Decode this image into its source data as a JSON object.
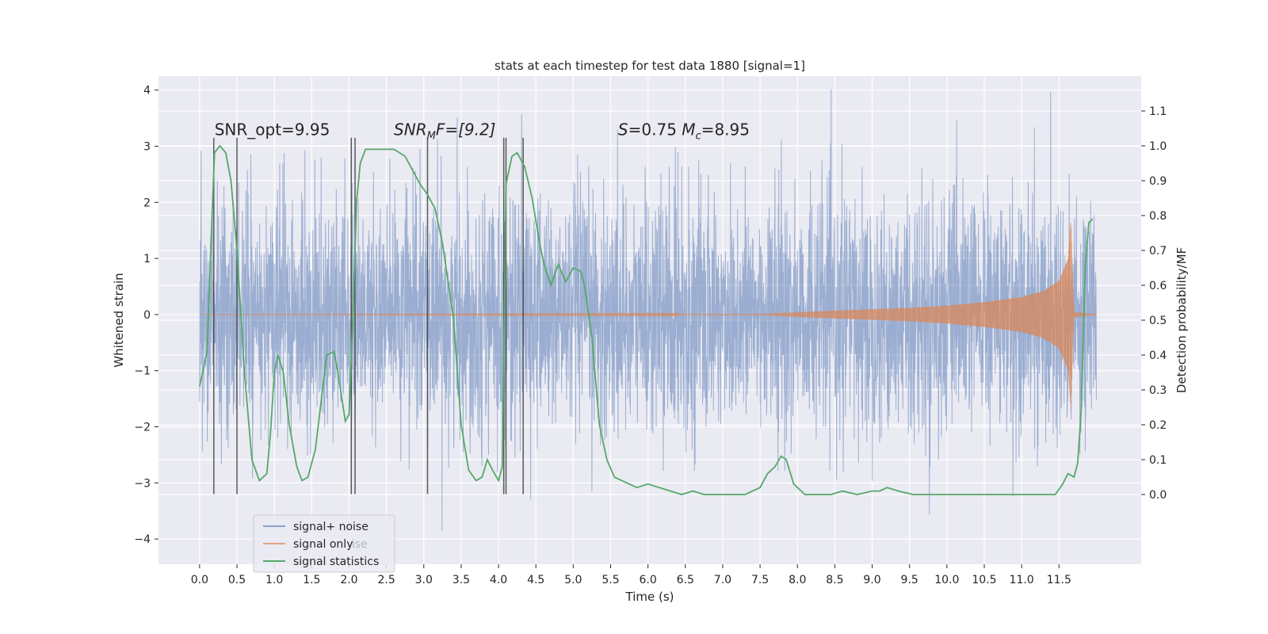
{
  "chart_data": {
    "type": "line",
    "title": "stats at each timestep for test data 1880 [signal=1]",
    "xlabel": "Time (s)",
    "ylabel": "Whitened strain",
    "ylabel_right": "Detection probability/MF",
    "xlim": [
      -0.55,
      12.6
    ],
    "ylim": [
      -4.45,
      4.25
    ],
    "ylim_right": [
      -0.2,
      1.2
    ],
    "x_ticks": [
      0.0,
      0.5,
      1.0,
      1.5,
      2.0,
      2.5,
      3.0,
      3.5,
      4.0,
      4.5,
      5.0,
      5.5,
      6.0,
      6.5,
      7.0,
      7.5,
      8.0,
      8.5,
      9.0,
      9.5,
      10.0,
      10.5,
      11.0,
      11.5
    ],
    "x_tick_labels": [
      "0.0",
      "0.5",
      "1.0",
      "1.5",
      "2.0",
      "2.5",
      "3.0",
      "3.5",
      "4.0",
      "4.5",
      "5.0",
      "5.5",
      "6.0",
      "6.5",
      "7.0",
      "7.5",
      "8.0",
      "8.5",
      "9.0",
      "9.5",
      "10.0",
      "10.5",
      "11.0",
      "11.5"
    ],
    "y_ticks": [
      -4,
      -3,
      -2,
      -1,
      0,
      1,
      2,
      3,
      4
    ],
    "y_tick_labels": [
      "−4",
      "−3",
      "−2",
      "−1",
      "0",
      "1",
      "2",
      "3",
      "4"
    ],
    "y_right_ticks": [
      0.0,
      0.1,
      0.2,
      0.3,
      0.4,
      0.5,
      0.6,
      0.7,
      0.8,
      0.9,
      1.0,
      1.1
    ],
    "y_right_tick_labels": [
      "0.0",
      "0.1",
      "0.2",
      "0.3",
      "0.4",
      "0.5",
      "0.6",
      "0.7",
      "0.8",
      "0.9",
      "1.0",
      "1.1"
    ],
    "grid": true,
    "legend_position": "lower-left",
    "colors": {
      "background": "#eaeaf2",
      "grid": "#ffffff",
      "signal_noise": "#4c72b0",
      "signal_only": "#dd8452",
      "statistics": "#55a868",
      "event_lines": "#404040"
    },
    "series": [
      {
        "name": "signal+ noise",
        "axis": "left",
        "time_range": [
          0.0,
          12.0
        ],
        "amplitude_range": [
          -4.1,
          4.05
        ]
      },
      {
        "name": "signal only",
        "axis": "left",
        "time_range": [
          0.0,
          12.0
        ],
        "envelope": [
          {
            "x": 0.0,
            "y": 0.0
          },
          {
            "x": 7.5,
            "y": 0.01
          },
          {
            "x": 8.5,
            "y": 0.07
          },
          {
            "x": 9.5,
            "y": 0.12
          },
          {
            "x": 10.0,
            "y": 0.16
          },
          {
            "x": 10.5,
            "y": 0.22
          },
          {
            "x": 11.0,
            "y": 0.31
          },
          {
            "x": 11.3,
            "y": 0.42
          },
          {
            "x": 11.5,
            "y": 0.6
          },
          {
            "x": 11.62,
            "y": 0.98
          },
          {
            "x": 11.66,
            "y": 1.7
          },
          {
            "x": 11.7,
            "y": 0.05
          },
          {
            "x": 12.0,
            "y": 0.0
          }
        ]
      },
      {
        "name": "signal statistics",
        "axis": "right",
        "x": [
          0.0,
          0.1,
          0.15,
          0.2,
          0.27,
          0.35,
          0.42,
          0.5,
          0.6,
          0.7,
          0.8,
          0.9,
          0.95,
          1.0,
          1.05,
          1.12,
          1.2,
          1.3,
          1.37,
          1.45,
          1.55,
          1.7,
          1.8,
          1.85,
          1.9,
          1.95,
          2.0,
          2.05,
          2.1,
          2.15,
          2.22,
          2.3,
          2.45,
          2.6,
          2.75,
          2.85,
          2.95,
          3.05,
          3.15,
          3.25,
          3.4,
          3.5,
          3.6,
          3.7,
          3.78,
          3.85,
          3.92,
          4.0,
          4.05,
          4.1,
          4.18,
          4.25,
          4.35,
          4.45,
          4.55,
          4.62,
          4.7,
          4.8,
          4.9,
          5.0,
          5.1,
          5.15,
          5.25,
          5.35,
          5.45,
          5.55,
          5.65,
          5.75,
          5.85,
          6.0,
          6.15,
          6.3,
          6.45,
          6.6,
          6.75,
          7.0,
          7.3,
          7.5,
          7.6,
          7.7,
          7.78,
          7.85,
          7.95,
          8.1,
          8.3,
          8.45,
          8.6,
          8.8,
          9.0,
          9.1,
          9.2,
          9.35,
          9.55,
          9.8,
          10.5,
          11.2,
          11.45,
          11.55,
          11.62,
          11.7,
          11.75,
          11.8,
          11.85,
          11.9,
          11.95
        ],
        "y": [
          0.31,
          0.41,
          0.71,
          0.98,
          1.0,
          0.98,
          0.9,
          0.7,
          0.35,
          0.1,
          0.04,
          0.06,
          0.18,
          0.35,
          0.4,
          0.35,
          0.2,
          0.08,
          0.04,
          0.05,
          0.13,
          0.4,
          0.41,
          0.35,
          0.28,
          0.21,
          0.23,
          0.5,
          0.84,
          0.95,
          0.99,
          0.99,
          0.99,
          0.99,
          0.97,
          0.93,
          0.89,
          0.86,
          0.82,
          0.72,
          0.5,
          0.2,
          0.07,
          0.04,
          0.05,
          0.1,
          0.07,
          0.04,
          0.08,
          0.89,
          0.97,
          0.98,
          0.94,
          0.85,
          0.72,
          0.65,
          0.6,
          0.66,
          0.61,
          0.65,
          0.64,
          0.6,
          0.45,
          0.2,
          0.1,
          0.05,
          0.04,
          0.03,
          0.02,
          0.03,
          0.02,
          0.01,
          0.0,
          0.01,
          0.0,
          0.0,
          0.0,
          0.02,
          0.06,
          0.08,
          0.11,
          0.1,
          0.03,
          0.0,
          0.0,
          0.0,
          0.01,
          0.0,
          0.01,
          0.01,
          0.02,
          0.01,
          0.0,
          0.0,
          0.0,
          0.0,
          0.0,
          0.03,
          0.06,
          0.05,
          0.09,
          0.25,
          0.65,
          0.78,
          0.79
        ]
      }
    ],
    "event_lines": [
      0.19,
      0.5,
      2.03,
      2.08,
      3.05,
      4.07,
      4.1,
      4.33
    ],
    "event_line_range": [
      -3.2,
      3.15
    ],
    "annotations": [
      {
        "kind": "plain",
        "text": "SNR_opt=9.95",
        "x": 0.2,
        "y": 3.2
      },
      {
        "kind": "snr_mf",
        "base": "SNR",
        "sub": "M",
        "rest": "F=[9.2]",
        "x": 2.6,
        "y": 3.2
      },
      {
        "kind": "s_mc",
        "s": "S",
        "s_rest": "=0.75",
        "m": "M",
        "m_sub": "c",
        "m_rest": "=8.95",
        "x": 5.6,
        "y": 3.2
      }
    ],
    "legend": {
      "entries": [
        "signal+ noise",
        "signal only",
        "signal statistics"
      ],
      "ghost_text": "ise"
    }
  }
}
